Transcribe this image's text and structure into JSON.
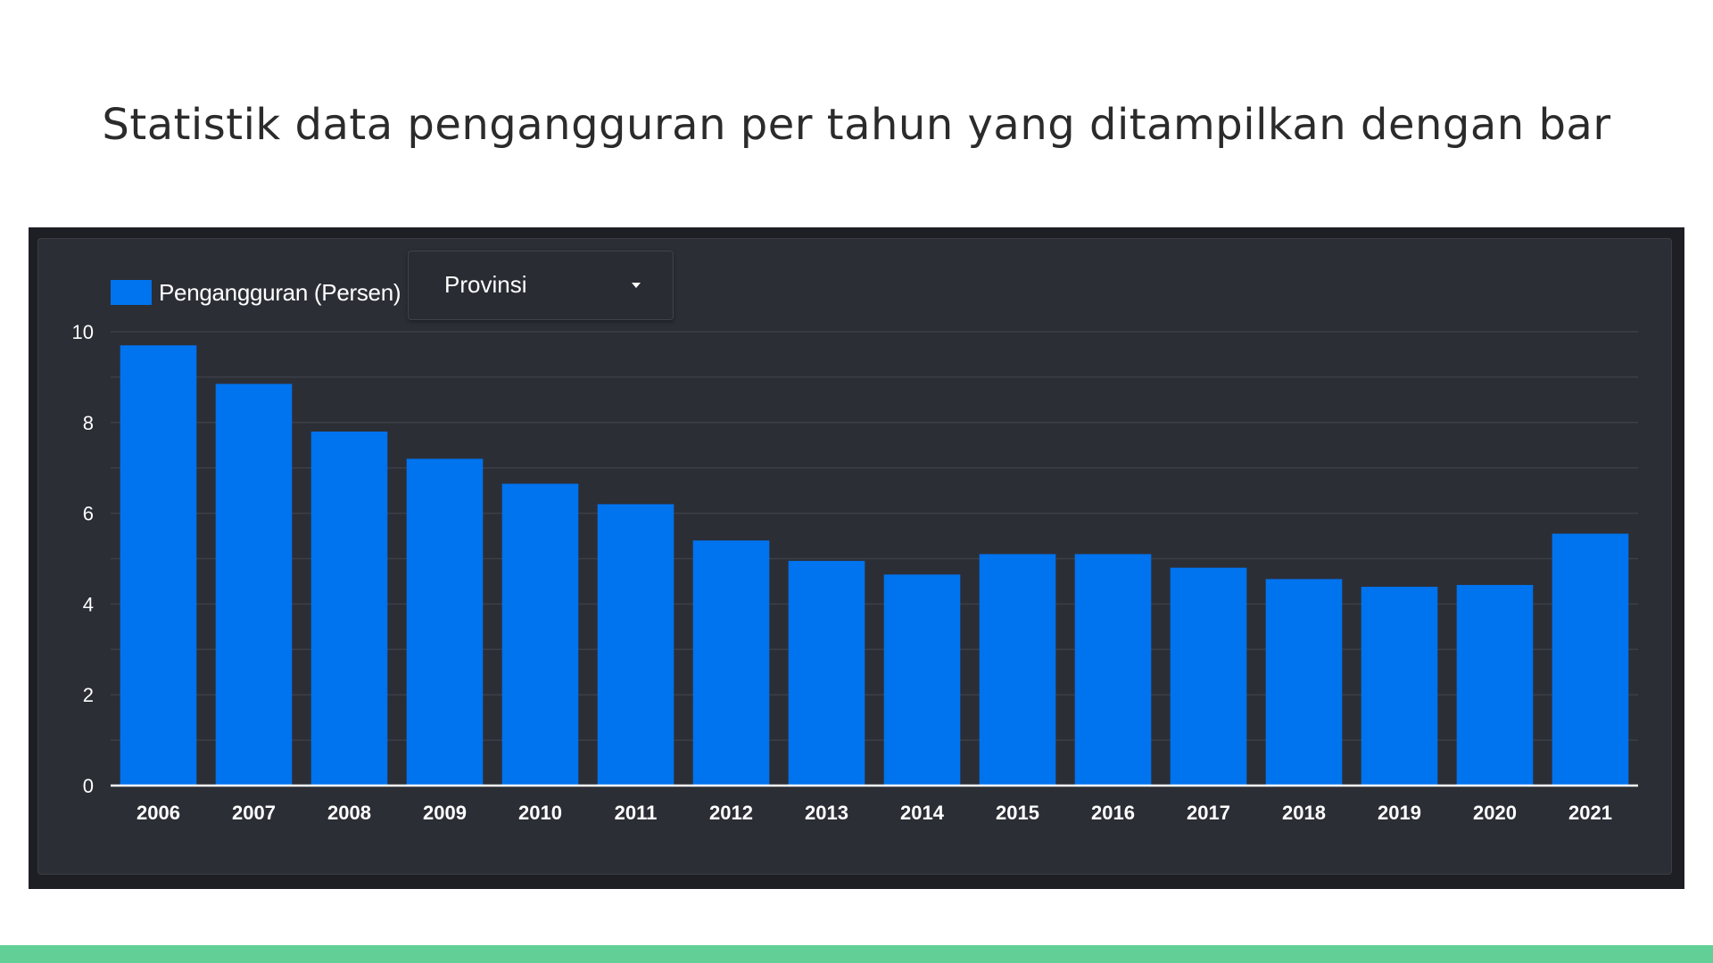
{
  "slide": {
    "title": "Statistik data pengangguran per tahun yang ditampilkan dengan bar"
  },
  "filter": {
    "label": "Provinsi",
    "icon": "caret-down-icon"
  },
  "colors": {
    "bar": "#0073ee",
    "panel": "#2c2e36",
    "frame": "#1e1f24",
    "accent_bar": "#62d096"
  },
  "chart_data": {
    "type": "bar",
    "title": "",
    "xlabel": "",
    "ylabel": "",
    "legend": "top-left",
    "grid": true,
    "ylim": [
      0,
      10
    ],
    "yticks": [
      0,
      2,
      4,
      6,
      8,
      10
    ],
    "categories": [
      "2006",
      "2007",
      "2008",
      "2009",
      "2010",
      "2011",
      "2012",
      "2013",
      "2014",
      "2015",
      "2016",
      "2017",
      "2018",
      "2019",
      "2020",
      "2021"
    ],
    "series": [
      {
        "name": "Pengangguran (Persen)",
        "values": [
          9.7,
          8.85,
          7.8,
          7.2,
          6.65,
          6.2,
          5.4,
          4.95,
          4.65,
          5.1,
          5.1,
          4.8,
          4.55,
          4.38,
          4.42,
          5.55
        ]
      }
    ]
  }
}
